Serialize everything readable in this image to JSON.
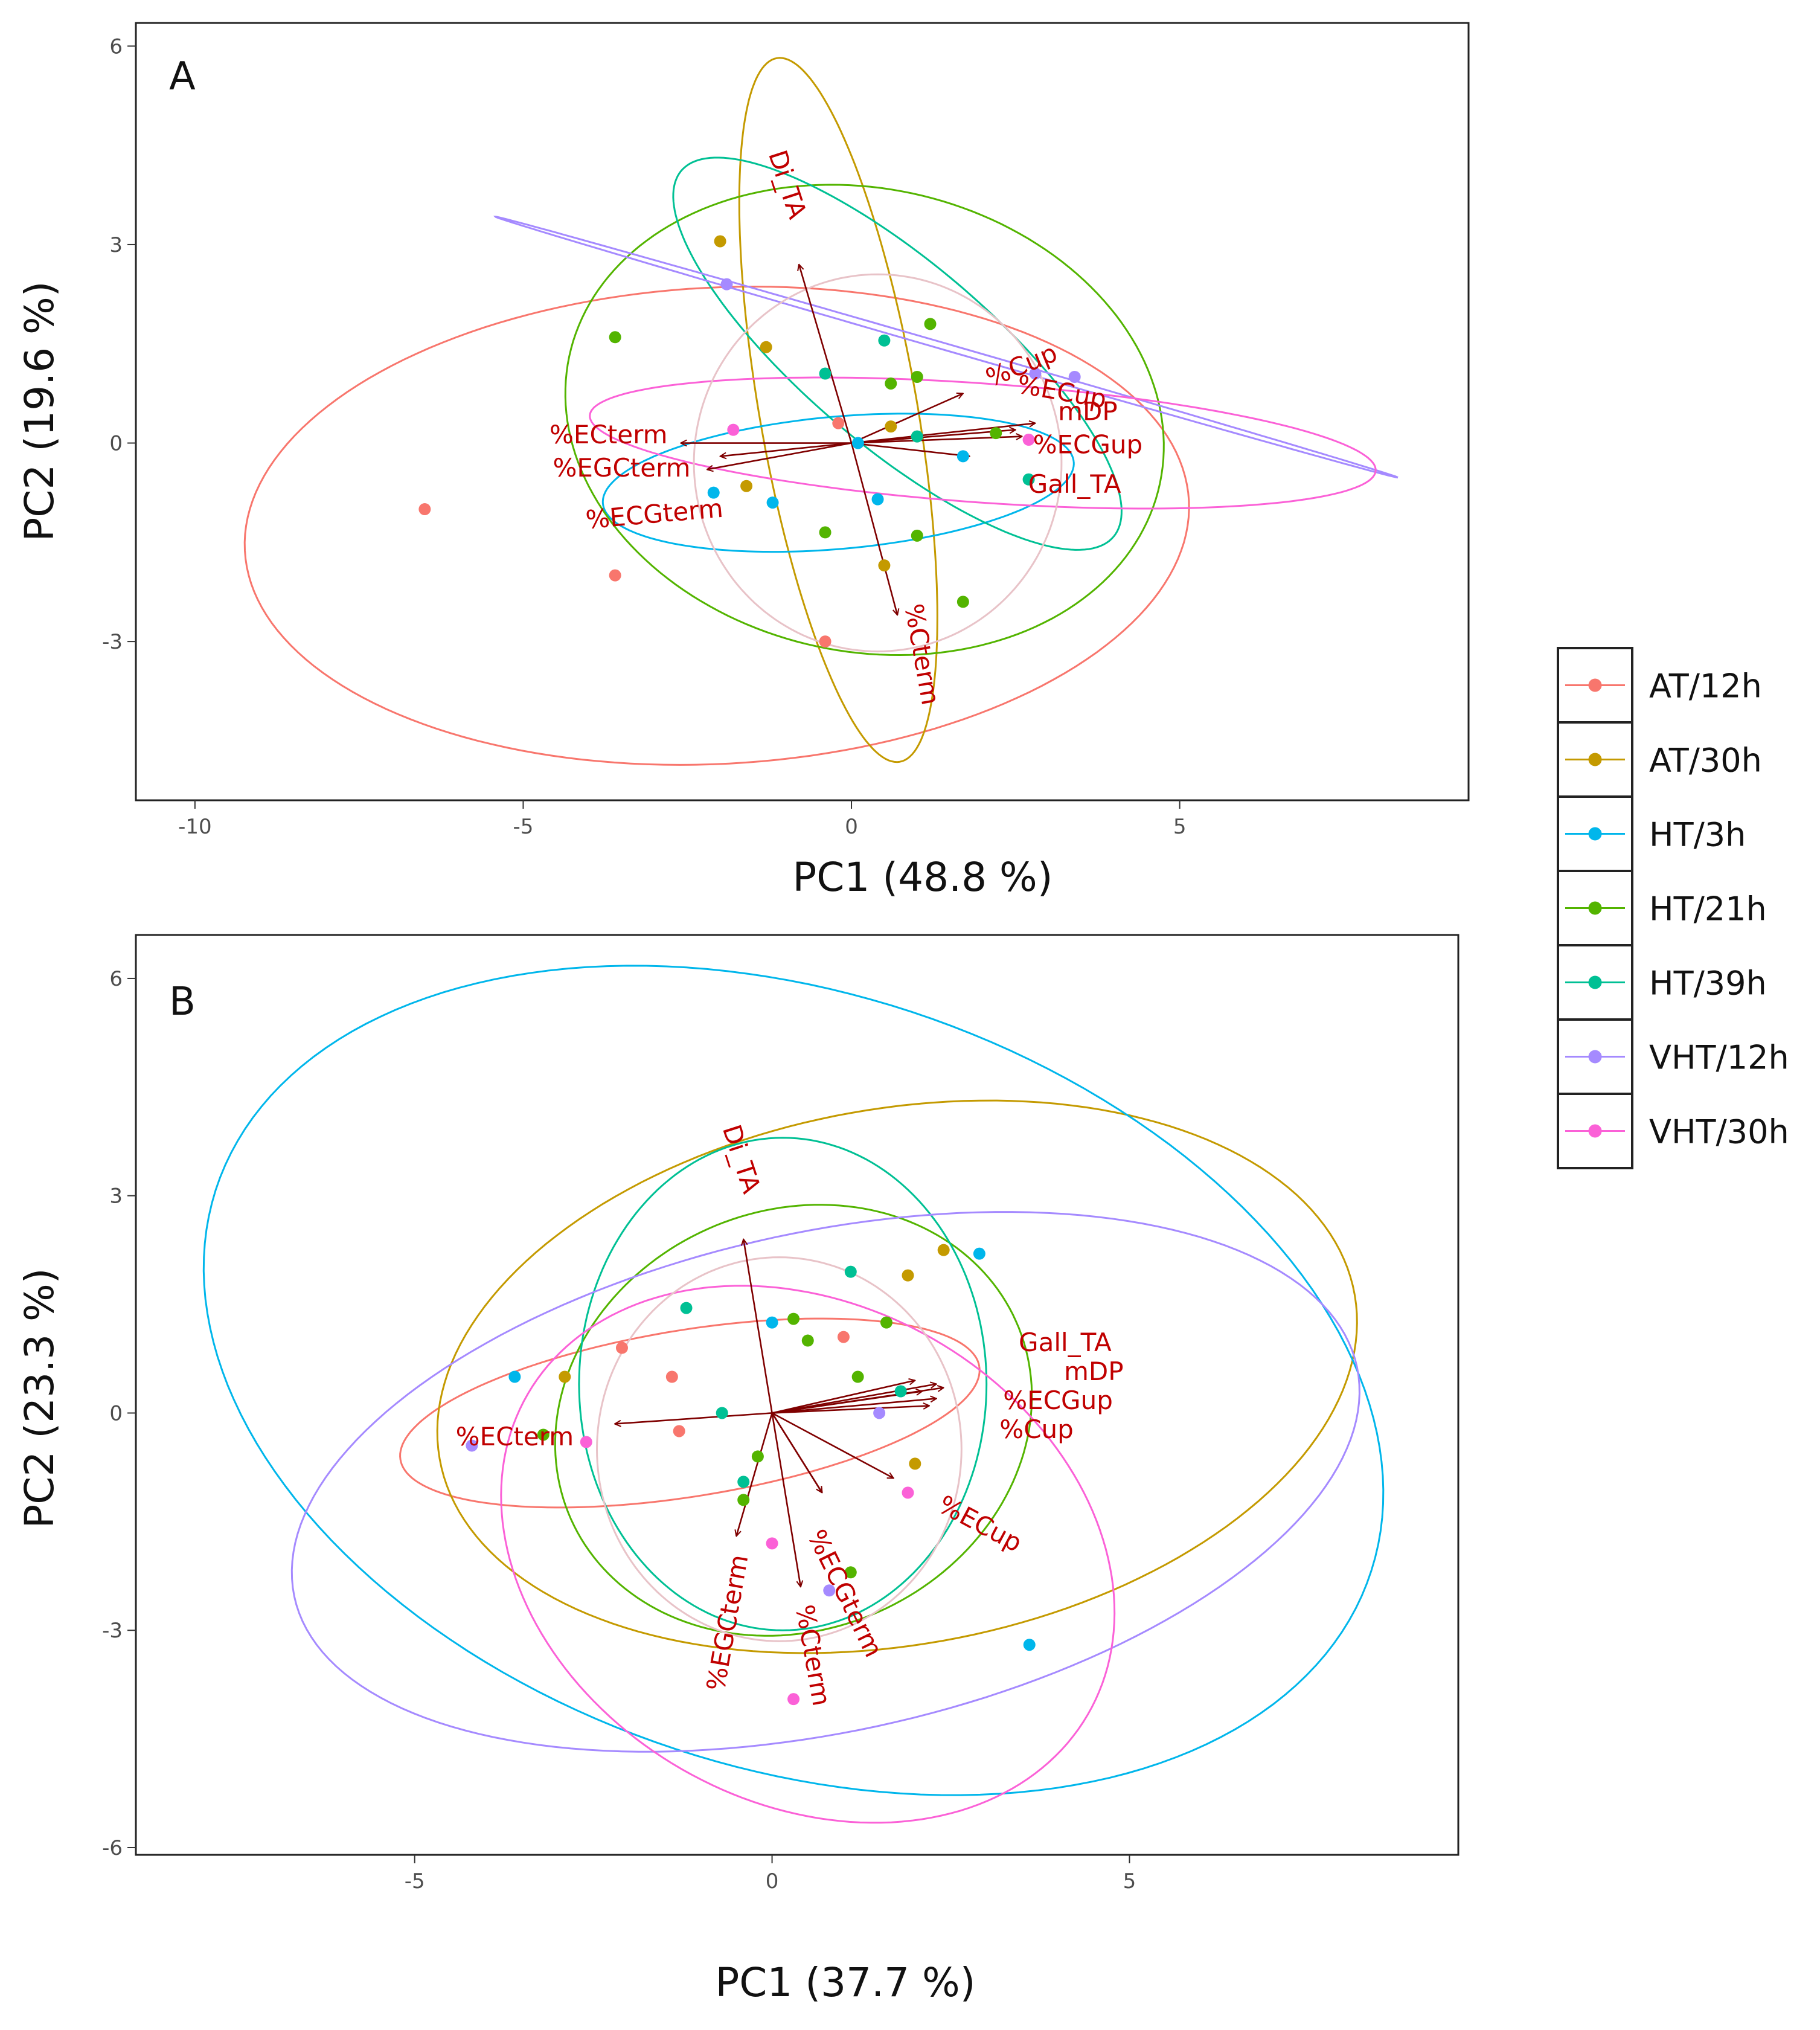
{
  "figure": {
    "groups": [
      {
        "name": "AT/12h",
        "color": "#F8766D"
      },
      {
        "name": "AT/30h",
        "color": "#C49A00"
      },
      {
        "name": "HT/3h",
        "color": "#00B6EB"
      },
      {
        "name": "HT/21h",
        "color": "#53B400"
      },
      {
        "name": "HT/39h",
        "color": "#00C094"
      },
      {
        "name": "VHT/12h",
        "color": "#A58AFF"
      },
      {
        "name": "VHT/30h",
        "color": "#FB61D7"
      }
    ],
    "overall_ellipse_color": "#E8C3C8",
    "arrow_color": "#7F0000",
    "label_color": "#C00000"
  },
  "chart_data": [
    {
      "type": "scatter",
      "panel": "A",
      "xlabel": "PC1 (48.8 %)",
      "ylabel": "PC2 (19.6 %)",
      "xlim": [
        -10.9,
        9.4
      ],
      "ylim": [
        -5.4,
        6.35
      ],
      "xticks": [
        {
          "v": -10,
          "label": "-10"
        },
        {
          "v": -5,
          "label": "-5"
        },
        {
          "v": 0,
          "label": "0"
        },
        {
          "v": 5,
          "label": "5"
        }
      ],
      "yticks": [
        {
          "v": -3,
          "label": "-3"
        },
        {
          "v": 0,
          "label": "0"
        },
        {
          "v": 3,
          "label": "3"
        },
        {
          "v": 6,
          "label": "6"
        }
      ],
      "points": [
        {
          "g": 0,
          "x": -6.5,
          "y": -1.0
        },
        {
          "g": 0,
          "x": -3.6,
          "y": -2.0
        },
        {
          "g": 0,
          "x": -0.4,
          "y": -3.0
        },
        {
          "g": 0,
          "x": -0.2,
          "y": 0.3
        },
        {
          "g": 0,
          "x": 1.0,
          "y": 0.1
        },
        {
          "g": 1,
          "x": -2.0,
          "y": 3.05
        },
        {
          "g": 1,
          "x": -1.3,
          "y": 1.45
        },
        {
          "g": 1,
          "x": -1.6,
          "y": -0.65
        },
        {
          "g": 1,
          "x": 0.5,
          "y": -1.85
        },
        {
          "g": 1,
          "x": 0.6,
          "y": 0.25
        },
        {
          "g": 2,
          "x": -2.1,
          "y": -0.75
        },
        {
          "g": 2,
          "x": -1.2,
          "y": -0.9
        },
        {
          "g": 2,
          "x": 0.1,
          "y": 0.0
        },
        {
          "g": 2,
          "x": 0.4,
          "y": -0.85
        },
        {
          "g": 2,
          "x": 1.7,
          "y": -0.2
        },
        {
          "g": 3,
          "x": -3.6,
          "y": 1.6
        },
        {
          "g": 3,
          "x": -0.4,
          "y": -1.35
        },
        {
          "g": 3,
          "x": 0.6,
          "y": 0.9
        },
        {
          "g": 3,
          "x": 1.0,
          "y": 1.0
        },
        {
          "g": 3,
          "x": 1.2,
          "y": 1.8
        },
        {
          "g": 3,
          "x": 1.0,
          "y": -1.4
        },
        {
          "g": 3,
          "x": 1.7,
          "y": -2.4
        },
        {
          "g": 3,
          "x": 2.2,
          "y": 0.15
        },
        {
          "g": 4,
          "x": -0.4,
          "y": 1.05
        },
        {
          "g": 4,
          "x": 0.5,
          "y": 1.55
        },
        {
          "g": 4,
          "x": 1.0,
          "y": 0.1
        },
        {
          "g": 4,
          "x": 2.7,
          "y": -0.55
        },
        {
          "g": 5,
          "x": -1.9,
          "y": 2.4
        },
        {
          "g": 5,
          "x": 2.8,
          "y": 1.05
        },
        {
          "g": 5,
          "x": 3.4,
          "y": 1.0
        },
        {
          "g": 6,
          "x": -1.8,
          "y": 0.2
        },
        {
          "g": 6,
          "x": 2.7,
          "y": 0.05
        }
      ],
      "ellipses": [
        {
          "g": 0,
          "cx": -2.05,
          "cy": -1.25,
          "rx": 7.2,
          "ry": 3.6,
          "angle": 3
        },
        {
          "g": 1,
          "cx": -0.2,
          "cy": 0.5,
          "rx": 5.4,
          "ry": 1.2,
          "angle": -80
        },
        {
          "g": 2,
          "cx": -0.2,
          "cy": -0.6,
          "rx": 3.6,
          "ry": 1.0,
          "angle": 5
        },
        {
          "g": 3,
          "cx": 0.2,
          "cy": 0.35,
          "rx": 4.6,
          "ry": 3.5,
          "angle": -12
        },
        {
          "g": 4,
          "cx": 0.7,
          "cy": 1.35,
          "rx": 4.3,
          "ry": 1.4,
          "angle": -40
        },
        {
          "g": 5,
          "cx": 1.45,
          "cy": 1.45,
          "rx": 7.15,
          "ry": 0.05,
          "angle": -16
        },
        {
          "g": 6,
          "cx": 2.0,
          "cy": 0.0,
          "rx": 6.0,
          "ry": 0.9,
          "angle": -4
        },
        {
          "g": -1,
          "cx": 0.4,
          "cy": -0.3,
          "rx": 2.8,
          "ry": 2.85,
          "angle": 0
        }
      ],
      "vectors": [
        {
          "label": "Di_TA",
          "x": -0.8,
          "y": 2.7,
          "lx": -1.0,
          "ly": 3.9,
          "rot": 72
        },
        {
          "label": "%Cterm",
          "x": 0.7,
          "y": -2.6,
          "lx": 1.05,
          "ly": -3.2,
          "rot": 80
        },
        {
          "label": "%ECterm",
          "x": -2.6,
          "y": 0.0,
          "lx": -3.7,
          "ly": 0.1,
          "rot": 0
        },
        {
          "label": "%EGCterm",
          "x": -2.2,
          "y": -0.4,
          "lx": -3.5,
          "ly": -0.4,
          "rot": 0
        },
        {
          "label": "%ECGterm",
          "x": -2.0,
          "y": -0.2,
          "lx": -3.0,
          "ly": -1.1,
          "rot": -5
        },
        {
          "label": "%Cup",
          "x": 1.7,
          "y": 0.75,
          "lx": 2.6,
          "ly": 1.15,
          "rot": -22
        },
        {
          "label": "%ECup",
          "x": 2.8,
          "y": 0.3,
          "lx": 3.2,
          "ly": 0.75,
          "rot": 10
        },
        {
          "label": "mDP",
          "x": 2.5,
          "y": 0.2,
          "lx": 3.6,
          "ly": 0.45,
          "rot": 0
        },
        {
          "label": "%ECGup",
          "x": 2.6,
          "y": 0.1,
          "lx": 3.6,
          "ly": -0.05,
          "rot": 0
        },
        {
          "label": "Gall_TA",
          "x": 1.8,
          "y": -0.2,
          "lx": 3.4,
          "ly": -0.65,
          "rot": 0
        }
      ]
    },
    {
      "type": "scatter",
      "panel": "B",
      "xlabel": "PC1 (37.7 %)",
      "ylabel": "PC2 (23.3 %)",
      "xlim": [
        -8.9,
        9.6
      ],
      "ylim": [
        -6.1,
        6.6
      ],
      "xticks": [
        {
          "v": -5,
          "label": "-5"
        },
        {
          "v": 0,
          "label": "0"
        },
        {
          "v": 5,
          "label": "5"
        }
      ],
      "yticks": [
        {
          "v": -6,
          "label": "-6"
        },
        {
          "v": -3,
          "label": "-3"
        },
        {
          "v": 0,
          "label": "0"
        },
        {
          "v": 3,
          "label": "3"
        },
        {
          "v": 6,
          "label": "6"
        }
      ],
      "points": [
        {
          "g": 0,
          "x": -2.1,
          "y": 0.9
        },
        {
          "g": 0,
          "x": -1.4,
          "y": 0.5
        },
        {
          "g": 0,
          "x": -1.3,
          "y": -0.25
        },
        {
          "g": 0,
          "x": 1.0,
          "y": 1.05
        },
        {
          "g": 1,
          "x": -2.9,
          "y": 0.5
        },
        {
          "g": 1,
          "x": 1.9,
          "y": 1.9
        },
        {
          "g": 1,
          "x": 2.4,
          "y": 2.25
        },
        {
          "g": 1,
          "x": 2.0,
          "y": -0.7
        },
        {
          "g": 2,
          "x": -3.6,
          "y": 0.5
        },
        {
          "g": 2,
          "x": 0.0,
          "y": 1.25
        },
        {
          "g": 2,
          "x": 2.9,
          "y": 2.2
        },
        {
          "g": 2,
          "x": 3.6,
          "y": -3.2
        },
        {
          "g": 3,
          "x": -3.2,
          "y": -0.3
        },
        {
          "g": 3,
          "x": 0.3,
          "y": 1.3
        },
        {
          "g": 3,
          "x": 0.5,
          "y": 1.0
        },
        {
          "g": 3,
          "x": 1.2,
          "y": 0.5
        },
        {
          "g": 3,
          "x": 1.6,
          "y": 1.25
        },
        {
          "g": 3,
          "x": -0.4,
          "y": -1.2
        },
        {
          "g": 3,
          "x": -0.2,
          "y": -0.6
        },
        {
          "g": 3,
          "x": 1.1,
          "y": -2.2
        },
        {
          "g": 4,
          "x": -1.2,
          "y": 1.45
        },
        {
          "g": 4,
          "x": -0.7,
          "y": 0.0
        },
        {
          "g": 4,
          "x": 1.1,
          "y": 1.95
        },
        {
          "g": 4,
          "x": -0.4,
          "y": -0.95
        },
        {
          "g": 4,
          "x": 1.8,
          "y": 0.3
        },
        {
          "g": 5,
          "x": -4.2,
          "y": -0.45
        },
        {
          "g": 5,
          "x": 1.5,
          "y": 0.0
        },
        {
          "g": 5,
          "x": 0.8,
          "y": -2.45
        },
        {
          "g": 6,
          "x": -2.6,
          "y": -0.4
        },
        {
          "g": 6,
          "x": 0.0,
          "y": -1.8
        },
        {
          "g": 6,
          "x": 0.3,
          "y": -3.95
        },
        {
          "g": 6,
          "x": 1.9,
          "y": -1.1
        }
      ],
      "ellipses": [
        {
          "g": 0,
          "cx": -1.15,
          "cy": 0.0,
          "rx": 4.1,
          "ry": 1.15,
          "angle": 9
        },
        {
          "g": 1,
          "cx": 1.75,
          "cy": 0.5,
          "rx": 6.5,
          "ry": 3.7,
          "angle": 10
        },
        {
          "g": 2,
          "cx": 0.3,
          "cy": 0.45,
          "rx": 8.5,
          "ry": 5.35,
          "angle": -18
        },
        {
          "g": 3,
          "cx": 0.3,
          "cy": -0.1,
          "rx": 3.4,
          "ry": 2.9,
          "angle": 22
        },
        {
          "g": 4,
          "cx": 0.15,
          "cy": 0.4,
          "rx": 2.85,
          "ry": 3.4,
          "angle": 0
        },
        {
          "g": 5,
          "cx": 0.75,
          "cy": -0.95,
          "rx": 7.6,
          "ry": 3.45,
          "angle": 12
        },
        {
          "g": 6,
          "cx": 0.5,
          "cy": -1.95,
          "rx": 4.5,
          "ry": 3.45,
          "angle": -28
        },
        {
          "g": -1,
          "cx": 0.1,
          "cy": -0.5,
          "rx": 2.55,
          "ry": 2.65,
          "angle": 0
        }
      ],
      "vectors": [
        {
          "label": "Di_TA",
          "x": -0.4,
          "y": 2.4,
          "lx": -0.45,
          "ly": 3.5,
          "rot": 72
        },
        {
          "label": "%ECterm",
          "x": -2.2,
          "y": -0.15,
          "lx": -3.6,
          "ly": -0.35,
          "rot": 0
        },
        {
          "label": "%EGCterm",
          "x": -0.5,
          "y": -1.7,
          "lx": -0.6,
          "ly": -2.9,
          "rot": -80
        },
        {
          "label": "%Cterm",
          "x": 0.4,
          "y": -2.4,
          "lx": 0.55,
          "ly": -3.35,
          "rot": 80
        },
        {
          "label": "%ECGterm",
          "x": 1.7,
          "y": -0.9,
          "lx": 1.0,
          "ly": -2.5,
          "rot": 64
        },
        {
          "label": "%ECup",
          "x": 0.7,
          "y": -1.1,
          "lx": 2.9,
          "ly": -1.55,
          "rot": 28
        },
        {
          "label": "Gall_TA",
          "x": 2.3,
          "y": 0.4,
          "lx": 4.1,
          "ly": 0.95,
          "rot": 0
        },
        {
          "label": "mDP",
          "x": 2.4,
          "y": 0.35,
          "lx": 4.5,
          "ly": 0.55,
          "rot": 0
        },
        {
          "label": "%ECGup",
          "x": 2.3,
          "y": 0.2,
          "lx": 4.0,
          "ly": 0.15,
          "rot": 0
        },
        {
          "label": "%Cup",
          "x": 2.2,
          "y": 0.1,
          "lx": 3.7,
          "ly": -0.25,
          "rot": 0
        },
        {
          "label": "",
          "x": 2.0,
          "y": 0.45
        },
        {
          "label": "",
          "x": 2.1,
          "y": 0.3
        },
        {
          "label": "",
          "x": 0.7,
          "y": -1.1
        }
      ]
    }
  ]
}
